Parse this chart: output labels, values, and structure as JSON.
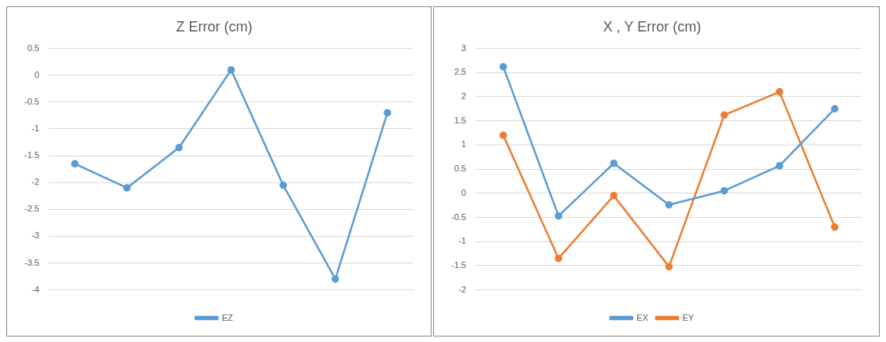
{
  "chart_data": [
    {
      "type": "line",
      "title": "Z Error (cm)",
      "categories": [
        null,
        null,
        null,
        null,
        null,
        null,
        null
      ],
      "series": [
        {
          "name": "EZ",
          "color": "#5b9bd5",
          "values": [
            -1.65,
            -2.1,
            -1.35,
            0.1,
            -2.05,
            -3.8,
            -0.7
          ]
        }
      ],
      "ylim": [
        -4,
        0.5
      ],
      "yticks": [
        -4,
        -3.5,
        -3,
        -2.5,
        -2,
        -1.5,
        -1,
        -0.5,
        0,
        0.5
      ],
      "grid": "y",
      "legend": "bottom",
      "marker": "circle"
    },
    {
      "type": "line",
      "title": "X , Y Error (cm)",
      "categories": [
        null,
        null,
        null,
        null,
        null,
        null,
        null
      ],
      "series": [
        {
          "name": "EX",
          "color": "#5b9bd5",
          "values": [
            2.62,
            -0.47,
            0.62,
            -0.24,
            0.05,
            0.57,
            1.75
          ]
        },
        {
          "name": "EY",
          "color": "#ed7d31",
          "values": [
            1.2,
            -1.35,
            -0.05,
            -1.52,
            1.62,
            2.1,
            -0.7
          ]
        }
      ],
      "ylim": [
        -2,
        3
      ],
      "yticks": [
        -2,
        -1.5,
        -1,
        -0.5,
        0,
        0.5,
        1,
        1.5,
        2,
        2.5,
        3
      ],
      "grid": "y",
      "legend": "bottom",
      "marker": "circle"
    }
  ]
}
